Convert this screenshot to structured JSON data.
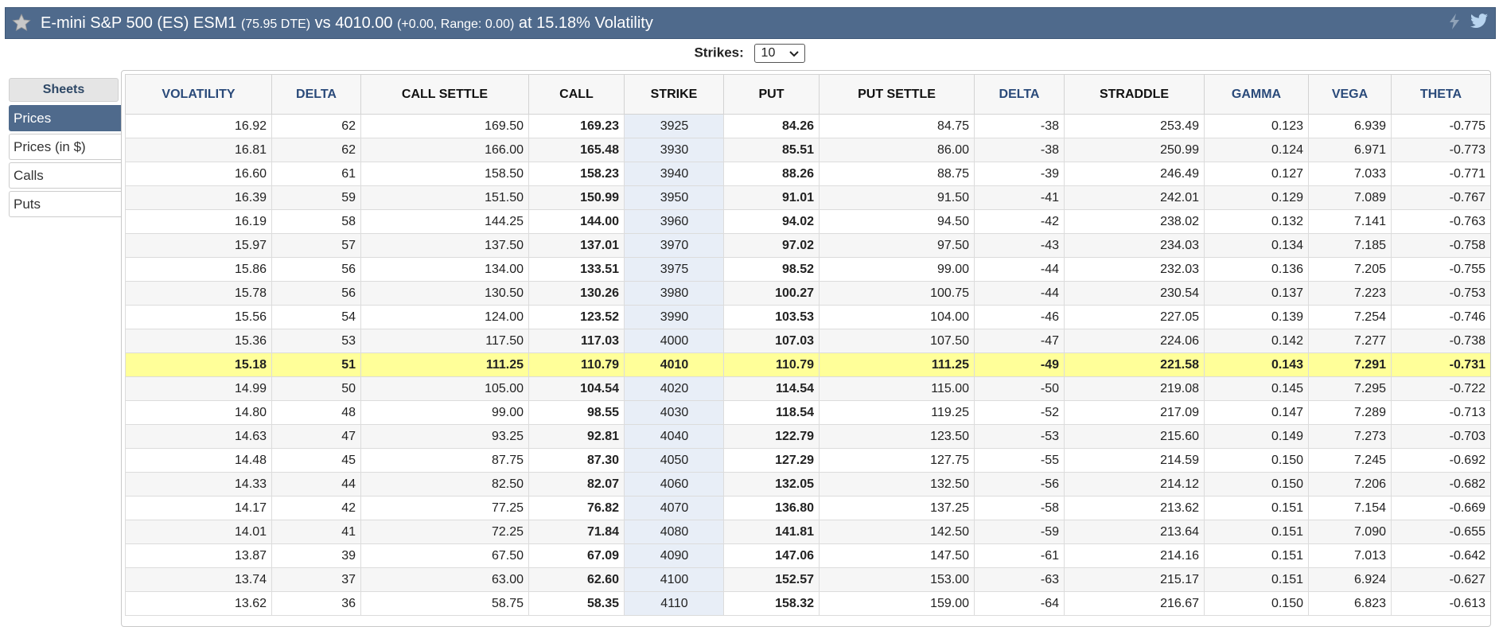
{
  "header": {
    "instrument": "E-mini S&P 500 (ES) ESM1",
    "dte": "(75.95 DTE)",
    "vs_label": "vs 4010.00",
    "change_range": "(+0.00,  Range: 0.00)",
    "vol_label": "at 15.18% Volatility",
    "star_icon": "star-icon",
    "icons": [
      "lightning-icon",
      "twitter-icon"
    ]
  },
  "strikes": {
    "label": "Strikes:",
    "value": "10"
  },
  "sidebar": {
    "heading": "Sheets",
    "items": [
      {
        "label": "Prices",
        "active": true
      },
      {
        "label": "Prices (in $)",
        "active": false
      },
      {
        "label": "Calls",
        "active": false
      },
      {
        "label": "Puts",
        "active": false
      }
    ]
  },
  "table": {
    "columns": [
      "VOLATILITY",
      "DELTA",
      "CALL SETTLE",
      "CALL",
      "STRIKE",
      "PUT",
      "PUT SETTLE",
      "DELTA",
      "STRADDLE",
      "GAMMA",
      "VEGA",
      "THETA"
    ],
    "atm_strike": "4010",
    "rows": [
      [
        "16.92",
        "62",
        "169.50",
        "169.23",
        "3925",
        "84.26",
        "84.75",
        "-38",
        "253.49",
        "0.123",
        "6.939",
        "-0.775"
      ],
      [
        "16.81",
        "62",
        "166.00",
        "165.48",
        "3930",
        "85.51",
        "86.00",
        "-38",
        "250.99",
        "0.124",
        "6.971",
        "-0.773"
      ],
      [
        "16.60",
        "61",
        "158.50",
        "158.23",
        "3940",
        "88.26",
        "88.75",
        "-39",
        "246.49",
        "0.127",
        "7.033",
        "-0.771"
      ],
      [
        "16.39",
        "59",
        "151.50",
        "150.99",
        "3950",
        "91.01",
        "91.50",
        "-41",
        "242.01",
        "0.129",
        "7.089",
        "-0.767"
      ],
      [
        "16.19",
        "58",
        "144.25",
        "144.00",
        "3960",
        "94.02",
        "94.50",
        "-42",
        "238.02",
        "0.132",
        "7.141",
        "-0.763"
      ],
      [
        "15.97",
        "57",
        "137.50",
        "137.01",
        "3970",
        "97.02",
        "97.50",
        "-43",
        "234.03",
        "0.134",
        "7.185",
        "-0.758"
      ],
      [
        "15.86",
        "56",
        "134.00",
        "133.51",
        "3975",
        "98.52",
        "99.00",
        "-44",
        "232.03",
        "0.136",
        "7.205",
        "-0.755"
      ],
      [
        "15.78",
        "56",
        "130.50",
        "130.26",
        "3980",
        "100.27",
        "100.75",
        "-44",
        "230.54",
        "0.137",
        "7.223",
        "-0.753"
      ],
      [
        "15.56",
        "54",
        "124.00",
        "123.52",
        "3990",
        "103.53",
        "104.00",
        "-46",
        "227.05",
        "0.139",
        "7.254",
        "-0.746"
      ],
      [
        "15.36",
        "53",
        "117.50",
        "117.03",
        "4000",
        "107.03",
        "107.50",
        "-47",
        "224.06",
        "0.142",
        "7.277",
        "-0.738"
      ],
      [
        "15.18",
        "51",
        "111.25",
        "110.79",
        "4010",
        "110.79",
        "111.25",
        "-49",
        "221.58",
        "0.143",
        "7.291",
        "-0.731"
      ],
      [
        "14.99",
        "50",
        "105.00",
        "104.54",
        "4020",
        "114.54",
        "115.00",
        "-50",
        "219.08",
        "0.145",
        "7.295",
        "-0.722"
      ],
      [
        "14.80",
        "48",
        "99.00",
        "98.55",
        "4030",
        "118.54",
        "119.25",
        "-52",
        "217.09",
        "0.147",
        "7.289",
        "-0.713"
      ],
      [
        "14.63",
        "47",
        "93.25",
        "92.81",
        "4040",
        "122.79",
        "123.50",
        "-53",
        "215.60",
        "0.149",
        "7.273",
        "-0.703"
      ],
      [
        "14.48",
        "45",
        "87.75",
        "87.30",
        "4050",
        "127.29",
        "127.75",
        "-55",
        "214.59",
        "0.150",
        "7.245",
        "-0.692"
      ],
      [
        "14.33",
        "44",
        "82.50",
        "82.07",
        "4060",
        "132.05",
        "132.50",
        "-56",
        "214.12",
        "0.150",
        "7.206",
        "-0.682"
      ],
      [
        "14.17",
        "42",
        "77.25",
        "76.82",
        "4070",
        "136.80",
        "137.25",
        "-58",
        "213.62",
        "0.151",
        "7.154",
        "-0.669"
      ],
      [
        "14.01",
        "41",
        "72.25",
        "71.84",
        "4080",
        "141.81",
        "142.50",
        "-59",
        "213.64",
        "0.151",
        "7.090",
        "-0.655"
      ],
      [
        "13.87",
        "39",
        "67.50",
        "67.09",
        "4090",
        "147.06",
        "147.50",
        "-61",
        "214.16",
        "0.151",
        "7.013",
        "-0.642"
      ],
      [
        "13.74",
        "37",
        "63.00",
        "62.60",
        "4100",
        "152.57",
        "153.00",
        "-63",
        "215.17",
        "0.151",
        "6.924",
        "-0.627"
      ],
      [
        "13.62",
        "36",
        "58.75",
        "58.35",
        "4110",
        "158.32",
        "159.00",
        "-64",
        "216.67",
        "0.150",
        "6.823",
        "-0.613"
      ]
    ]
  }
}
